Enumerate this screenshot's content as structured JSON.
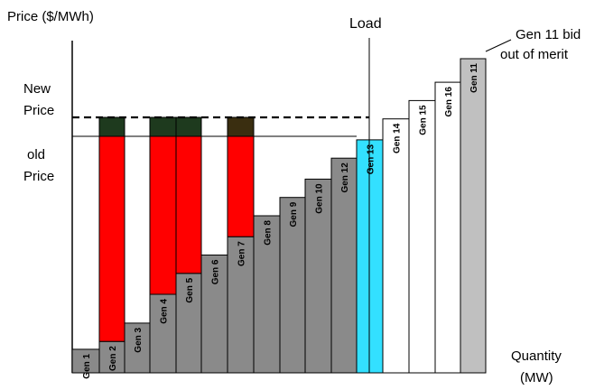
{
  "labels": {
    "y_axis_title": "Price ($/MWh)",
    "new_price": [
      "New",
      "Price"
    ],
    "old_price": [
      "old",
      "Price"
    ],
    "load": "Load",
    "annotation": [
      "Gen 11 bid",
      "out of merit"
    ],
    "quantity": [
      "Quantity",
      "(MW)"
    ]
  },
  "colors": {
    "generator_in_merit": "#8a8a8a",
    "generator_out_of_merit": "#ffffff",
    "gen11": "#c0c0c0",
    "marginal_gen13": "#33e0ff",
    "price_increase_red": "#ff0000",
    "price_increase_dark": "#1e3a1e",
    "gen7_dark": "#3a2e10"
  },
  "generators": [
    {
      "label": "Gen 1",
      "type": "in-merit",
      "height": 0.09
    },
    {
      "label": "Gen 2",
      "type": "in-merit",
      "height": 0.12,
      "uplift_red": true
    },
    {
      "label": "Gen 3",
      "type": "in-merit",
      "height": 0.19
    },
    {
      "label": "Gen 4",
      "type": "in-merit",
      "height": 0.3,
      "uplift_red": true
    },
    {
      "label": "Gen 5",
      "type": "in-merit",
      "height": 0.38,
      "uplift_red": true
    },
    {
      "label": "Gen 6",
      "type": "in-merit",
      "height": 0.45
    },
    {
      "label": "Gen 7",
      "type": "in-merit",
      "height": 0.52,
      "uplift_red": true,
      "dark": "gen7"
    },
    {
      "label": "Gen 8",
      "type": "in-merit",
      "height": 0.6
    },
    {
      "label": "Gen 9",
      "type": "in-merit",
      "height": 0.67
    },
    {
      "label": "Gen 10",
      "type": "in-merit",
      "height": 0.74
    },
    {
      "label": "Gen 12",
      "type": "in-merit",
      "height": 0.82
    },
    {
      "label": "Gen 13",
      "type": "marginal",
      "height": 0.89
    },
    {
      "label": "Gen 14",
      "type": "out-of-merit",
      "height": 0.97
    },
    {
      "label": "Gen 15",
      "type": "out-of-merit",
      "height": 1.04
    },
    {
      "label": "Gen 16",
      "type": "out-of-merit",
      "height": 1.11
    },
    {
      "label": "Gen 11",
      "type": "out-of-merit-high",
      "height": 1.2
    }
  ]
}
